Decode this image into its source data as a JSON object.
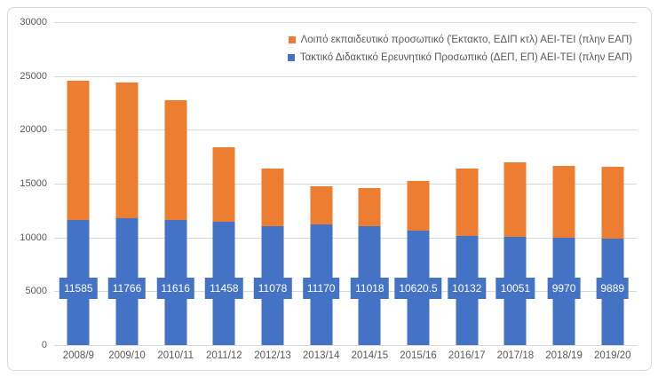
{
  "chart_data": {
    "type": "bar",
    "subtype": "stacked-column",
    "title": "",
    "xlabel": "",
    "ylabel": "",
    "categories": [
      "2008/9",
      "2009/10",
      "2010/11",
      "2011/12",
      "2012/13",
      "2013/14",
      "2014/15",
      "2015/16",
      "2016/17",
      "2017/18",
      "2018/19",
      "2019/20"
    ],
    "series": [
      {
        "name": "Τακτικό Διδακτικό Ερευνητικό Προσωπικό (ΔΕΠ, ΕΠ) ΑΕΙ-ΤΕΙ (πλην ΕΑΠ)",
        "color": "#4472C4",
        "values": [
          11585,
          11766,
          11616,
          11458,
          11078,
          11170,
          11018,
          10620.5,
          10132,
          10051,
          9970,
          9889
        ],
        "data_labels_visible": true
      },
      {
        "name": "Λοιπό εκπαιδευτικό προσωπικό (Έκτακτο, ΕΔΙΠ κτλ) ΑΕΙ-ΤΕΙ (πλην ΕΑΠ)",
        "color": "#ED7D31",
        "values": [
          13000,
          12650,
          11100,
          6900,
          5350,
          3550,
          3600,
          4600,
          6300,
          6900,
          6700,
          6700
        ],
        "data_labels_visible": false,
        "note": "values estimated from bar heights"
      }
    ],
    "legend": {
      "position": "top-right",
      "entries": [
        {
          "label": "Λοιπό εκπαιδευτικό προσωπικό (Έκτακτο, ΕΔΙΠ κτλ) ΑΕΙ-ΤΕΙ (πλην ΕΑΠ)",
          "color": "#ED7D31"
        },
        {
          "label": "Τακτικό Διδακτικό Ερευνητικό Προσωπικό (ΔΕΠ, ΕΠ) ΑΕΙ-ΤΕΙ (πλην ΕΑΠ)",
          "color": "#4472C4"
        }
      ]
    },
    "y_axis": {
      "min": 0,
      "max": 30000,
      "step": 5000,
      "tick_labels": [
        "30000",
        "25000",
        "20000",
        "15000",
        "10000",
        "5000",
        "0"
      ]
    },
    "grid": true,
    "colors": {
      "gridline": "#d9d9d9",
      "axis_text": "#595959",
      "data_label_text": "#ffffff",
      "data_label_background": "#4472C4",
      "chart_border": "#d9d9d9",
      "background": "#ffffff"
    }
  }
}
